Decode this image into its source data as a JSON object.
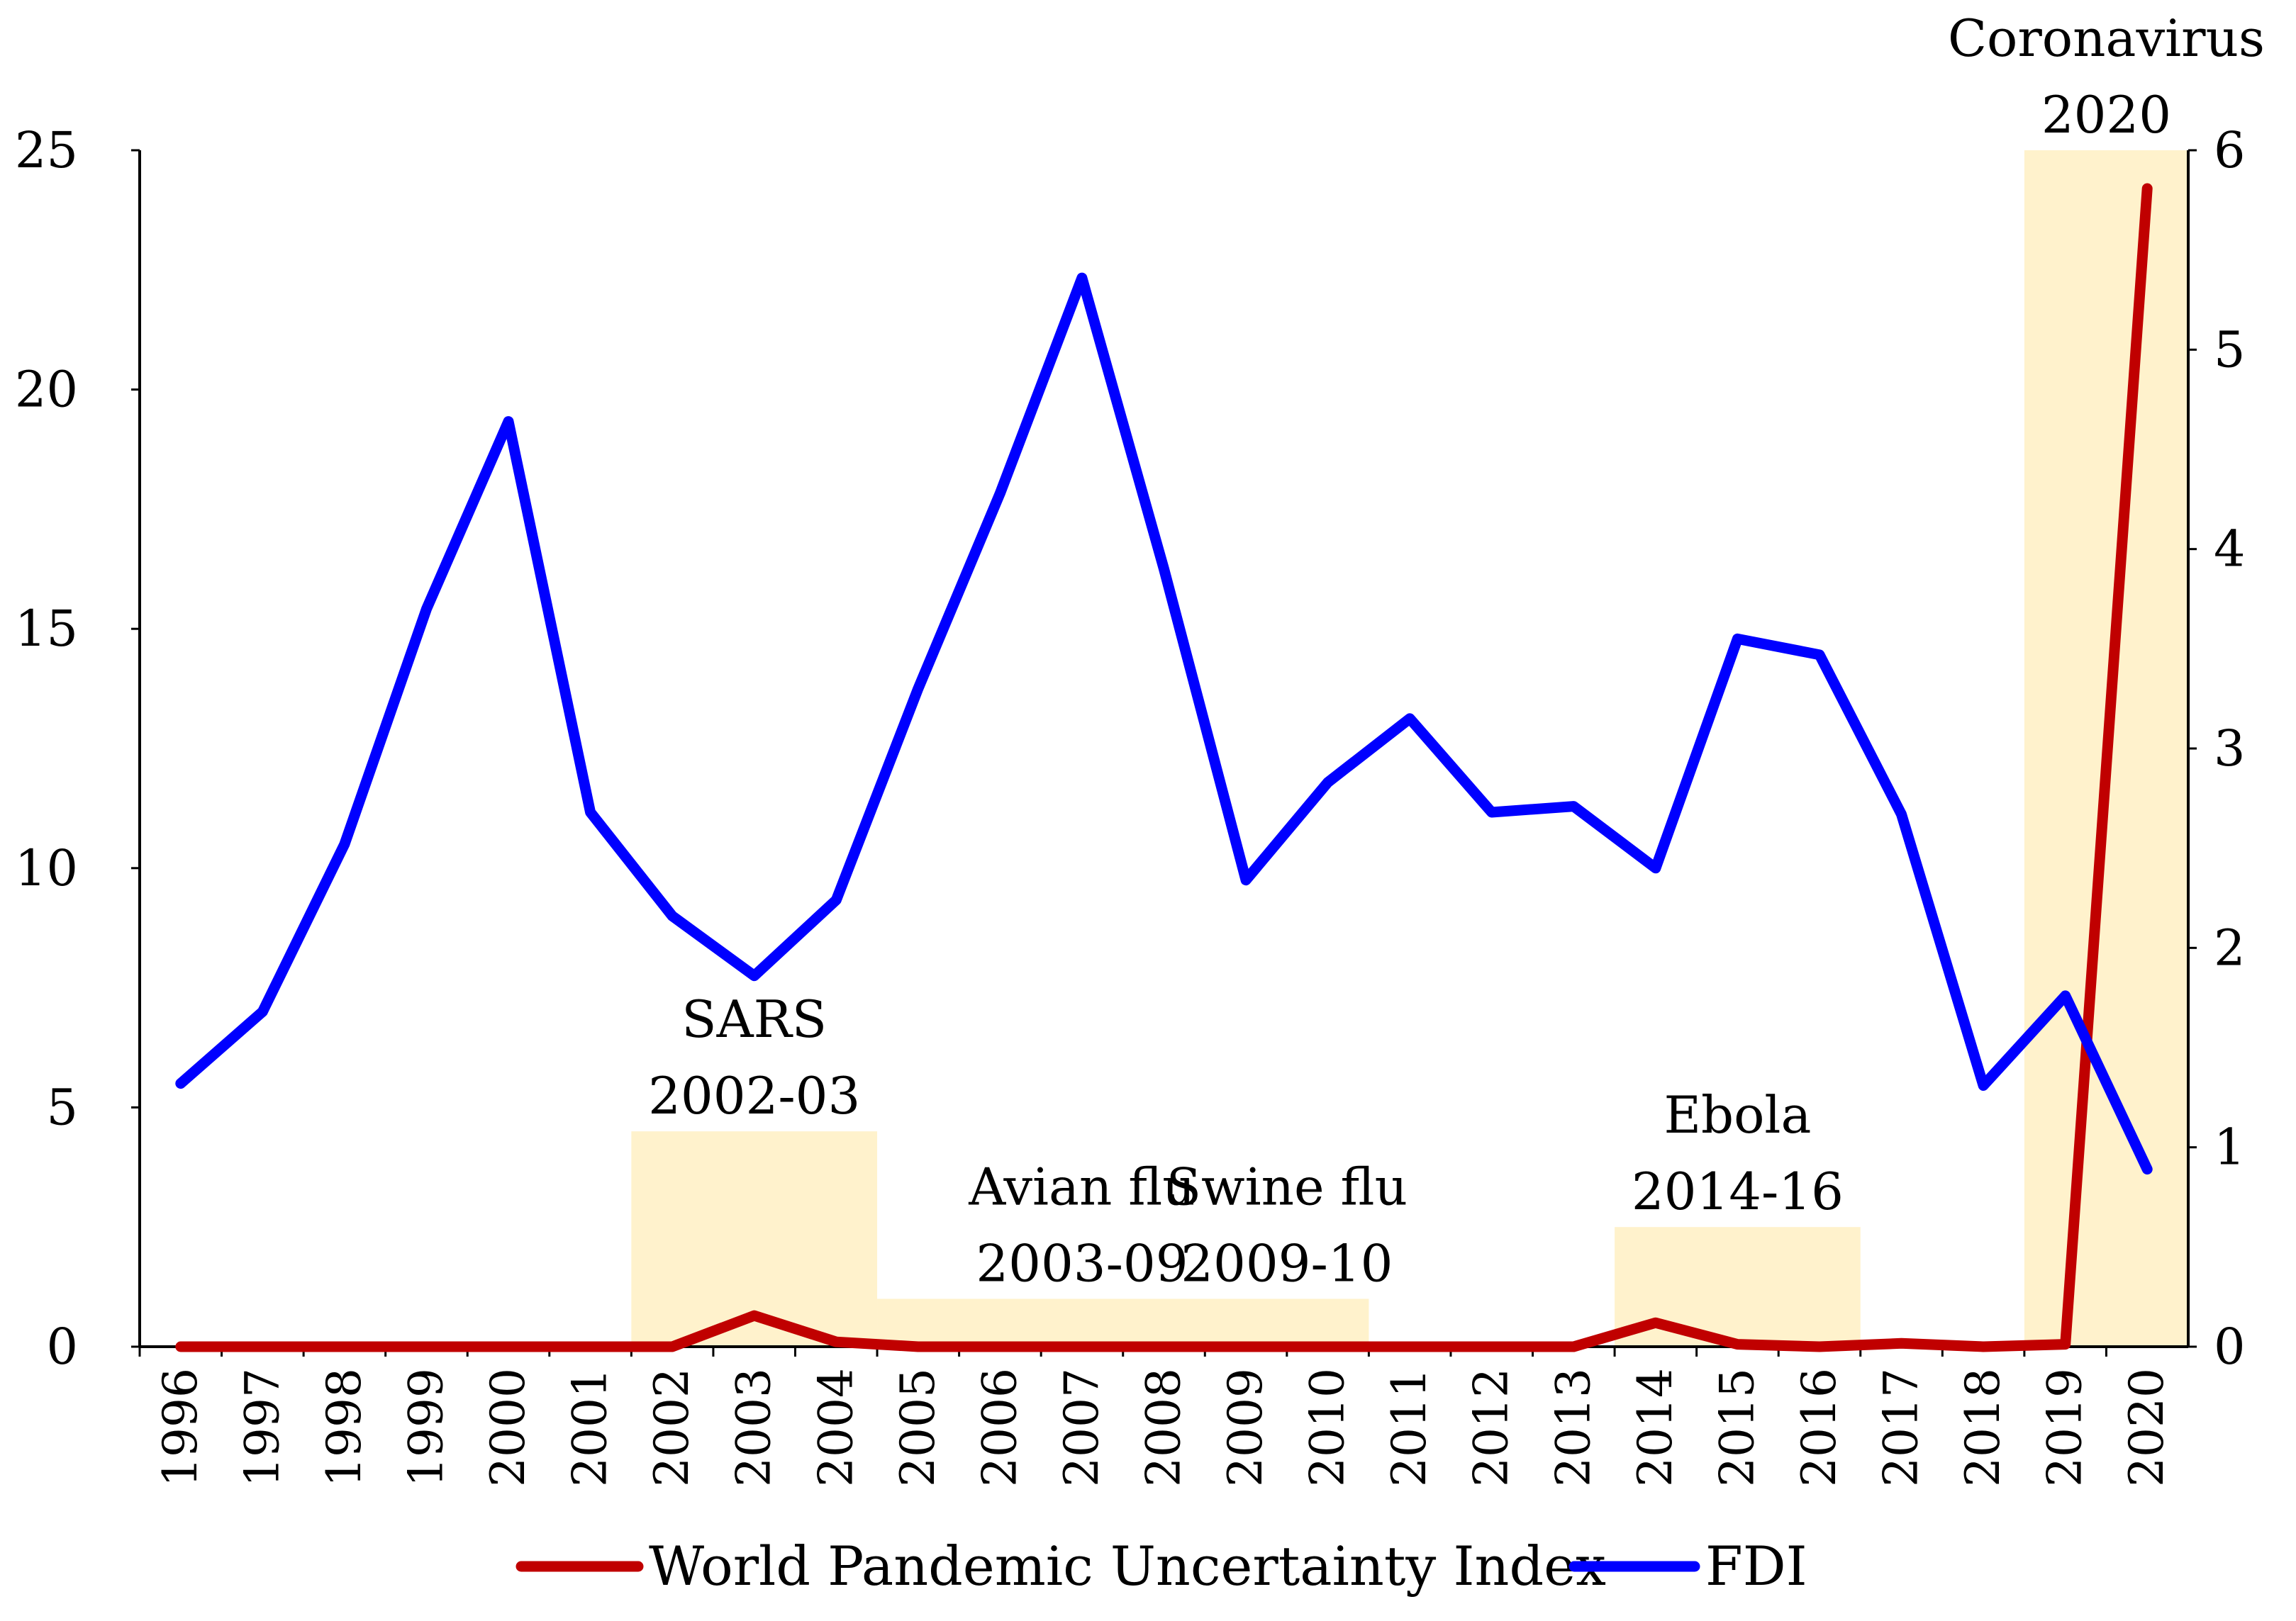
{
  "chart_data": {
    "type": "line",
    "title": "",
    "xlabel": "",
    "ylabel": "",
    "categories": [
      "1996",
      "1997",
      "1998",
      "1999",
      "2000",
      "2001",
      "2002",
      "2003",
      "2004",
      "2005",
      "2006",
      "2007",
      "2008",
      "2009",
      "2010",
      "2011",
      "2012",
      "2013",
      "2014",
      "2015",
      "2016",
      "2017",
      "2018",
      "2019",
      "2020"
    ],
    "y_left": {
      "ylim": [
        0,
        25
      ],
      "ticks": [
        "0",
        "5",
        "10",
        "15",
        "20",
        "25"
      ]
    },
    "y_right": {
      "ylim": [
        0,
        6
      ],
      "ticks": [
        "0",
        "1",
        "2",
        "3",
        "4",
        "5",
        "6"
      ]
    },
    "series": [
      {
        "name": "World Pandemic Uncertainty Index",
        "axis": "left",
        "color": "#c00000",
        "values": [
          0,
          0,
          0,
          0,
          0,
          0,
          0,
          0.65,
          0.1,
          0,
          0,
          0,
          0,
          0,
          0,
          0,
          0,
          0,
          0.5,
          0.05,
          0,
          0.07,
          0,
          0.05,
          24.2
        ]
      },
      {
        "name": "FDI",
        "axis": "right",
        "color": "#0000ff",
        "values": [
          1.32,
          1.68,
          2.52,
          3.7,
          4.64,
          2.68,
          2.16,
          1.86,
          2.24,
          3.3,
          4.28,
          5.36,
          3.9,
          2.34,
          2.83,
          3.15,
          2.68,
          2.71,
          2.4,
          3.55,
          3.47,
          2.67,
          1.31,
          1.76,
          0.89
        ]
      }
    ],
    "annotations": [
      {
        "lines": [
          "SARS",
          "2002-03"
        ],
        "start": "2002",
        "end": "2004",
        "height": 4.5
      },
      {
        "lines": [
          "Avian flu",
          "2003-09"
        ],
        "start": "2005",
        "end": "2009",
        "height": 1.0
      },
      {
        "lines": [
          "Swine flu",
          "2009-10"
        ],
        "start": "2009",
        "end": "2010",
        "height": 1.0
      },
      {
        "lines": [
          "Ebola",
          "2014-16"
        ],
        "start": "2014",
        "end": "2016",
        "height": 2.5
      },
      {
        "lines": [
          "Coronavirus",
          "2020"
        ],
        "start": "2019",
        "end": "2020",
        "height": 25
      }
    ],
    "shade_color": "#fff2cc",
    "legend_position": "bottom",
    "grid": false
  }
}
